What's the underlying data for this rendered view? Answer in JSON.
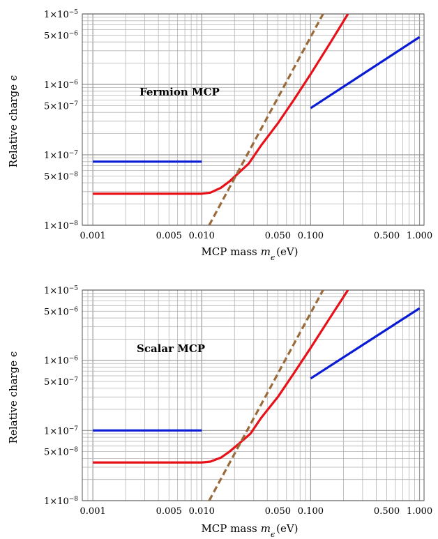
{
  "chart_data": [
    {
      "type": "line",
      "annotation": "Fermion MCP",
      "xlabel_text": "MCP mass",
      "xlabel_symbol": "m",
      "xlabel_subscript": "ϵ",
      "xlabel_unit": "(eV)",
      "ylabel": "Relative charge ϵ",
      "xscale": "log",
      "yscale": "log",
      "xlim": [
        0.0008,
        1.1
      ],
      "ylim": [
        1e-08,
        1e-05
      ],
      "grid": true,
      "xticks": [
        {
          "v": 0.001,
          "label": "0.001"
        },
        {
          "v": 0.005,
          "label": "0.005"
        },
        {
          "v": 0.01,
          "label": "0.010"
        },
        {
          "v": 0.05,
          "label": "0.050"
        },
        {
          "v": 0.1,
          "label": "0.100"
        },
        {
          "v": 0.5,
          "label": "0.500"
        },
        {
          "v": 1,
          "label": "1.000"
        }
      ],
      "yticks": [
        {
          "v": 1e-08,
          "mant": "1",
          "exp": "−8"
        },
        {
          "v": 5e-08,
          "mant": "5",
          "exp": "−8"
        },
        {
          "v": 1e-07,
          "mant": "1",
          "exp": "−7"
        },
        {
          "v": 5e-07,
          "mant": "5",
          "exp": "−7"
        },
        {
          "v": 1e-06,
          "mant": "1",
          "exp": "−6"
        },
        {
          "v": 5e-06,
          "mant": "5",
          "exp": "−6"
        },
        {
          "v": 1e-05,
          "mant": "1",
          "exp": "−5"
        }
      ],
      "series": [
        {
          "color": "#0a1bd6",
          "style": "solid",
          "points": [
            [
              0.001,
              8e-08
            ],
            [
              0.01,
              8e-08
            ]
          ]
        },
        {
          "color": "#0a1bd6",
          "style": "solid",
          "points": [
            [
              0.1,
              4.6e-07
            ],
            [
              1.0,
              4.7e-06
            ]
          ]
        },
        {
          "color": "#e8111a",
          "style": "solid",
          "points": [
            [
              0.001,
              2.8e-08
            ],
            [
              0.01,
              2.8e-08
            ],
            [
              0.012,
              2.9e-08
            ],
            [
              0.015,
              3.4e-08
            ],
            [
              0.018,
              4.2e-08
            ],
            [
              0.022,
              5.6e-08
            ],
            [
              0.027,
              7.5e-08
            ],
            [
              0.035,
              1.35e-07
            ],
            [
              0.05,
              2.8e-07
            ],
            [
              0.07,
              6e-07
            ],
            [
              0.1,
              1.4e-06
            ],
            [
              0.15,
              3.8e-06
            ],
            [
              0.22,
              1e-05
            ]
          ]
        },
        {
          "color": "#9a6a3a",
          "style": "dashed",
          "points": [
            [
              0.0117,
              1e-08
            ],
            [
              0.13,
              1e-05
            ]
          ]
        }
      ]
    },
    {
      "type": "line",
      "annotation": "Scalar MCP",
      "xlabel_text": "MCP mass",
      "xlabel_symbol": "m",
      "xlabel_subscript": "ϵ",
      "xlabel_unit": "(eV)",
      "ylabel": "Relative charge ϵ",
      "xscale": "log",
      "yscale": "log",
      "xlim": [
        0.0008,
        1.1
      ],
      "ylim": [
        1e-08,
        1e-05
      ],
      "grid": true,
      "xticks": [
        {
          "v": 0.001,
          "label": "0.001"
        },
        {
          "v": 0.005,
          "label": "0.005"
        },
        {
          "v": 0.01,
          "label": "0.010"
        },
        {
          "v": 0.05,
          "label": "0.050"
        },
        {
          "v": 0.1,
          "label": "0.100"
        },
        {
          "v": 0.5,
          "label": "0.500"
        },
        {
          "v": 1,
          "label": "1.000"
        }
      ],
      "yticks": [
        {
          "v": 1e-08,
          "mant": "1",
          "exp": "−8"
        },
        {
          "v": 5e-08,
          "mant": "5",
          "exp": "−8"
        },
        {
          "v": 1e-07,
          "mant": "1",
          "exp": "−7"
        },
        {
          "v": 5e-07,
          "mant": "5",
          "exp": "−7"
        },
        {
          "v": 1e-06,
          "mant": "1",
          "exp": "−6"
        },
        {
          "v": 5e-06,
          "mant": "5",
          "exp": "−6"
        },
        {
          "v": 1e-05,
          "mant": "1",
          "exp": "−5"
        }
      ],
      "series": [
        {
          "color": "#0a1bd6",
          "style": "solid",
          "points": [
            [
              0.001,
              1e-07
            ],
            [
              0.01,
              1e-07
            ]
          ]
        },
        {
          "color": "#0a1bd6",
          "style": "solid",
          "points": [
            [
              0.1,
              5.5e-07
            ],
            [
              1.0,
              5.5e-06
            ]
          ]
        },
        {
          "color": "#e8111a",
          "style": "solid",
          "points": [
            [
              0.001,
              3.5e-08
            ],
            [
              0.01,
              3.5e-08
            ],
            [
              0.012,
              3.6e-08
            ],
            [
              0.015,
              4.1e-08
            ],
            [
              0.018,
              5e-08
            ],
            [
              0.022,
              6.5e-08
            ],
            [
              0.028,
              9e-08
            ],
            [
              0.035,
              1.5e-07
            ],
            [
              0.05,
              3e-07
            ],
            [
              0.07,
              6.5e-07
            ],
            [
              0.1,
              1.5e-06
            ],
            [
              0.15,
              4e-06
            ],
            [
              0.22,
              1e-05
            ]
          ]
        },
        {
          "color": "#9a6a3a",
          "style": "dashed",
          "points": [
            [
              0.0117,
              1e-08
            ],
            [
              0.13,
              1e-05
            ]
          ]
        }
      ]
    }
  ]
}
